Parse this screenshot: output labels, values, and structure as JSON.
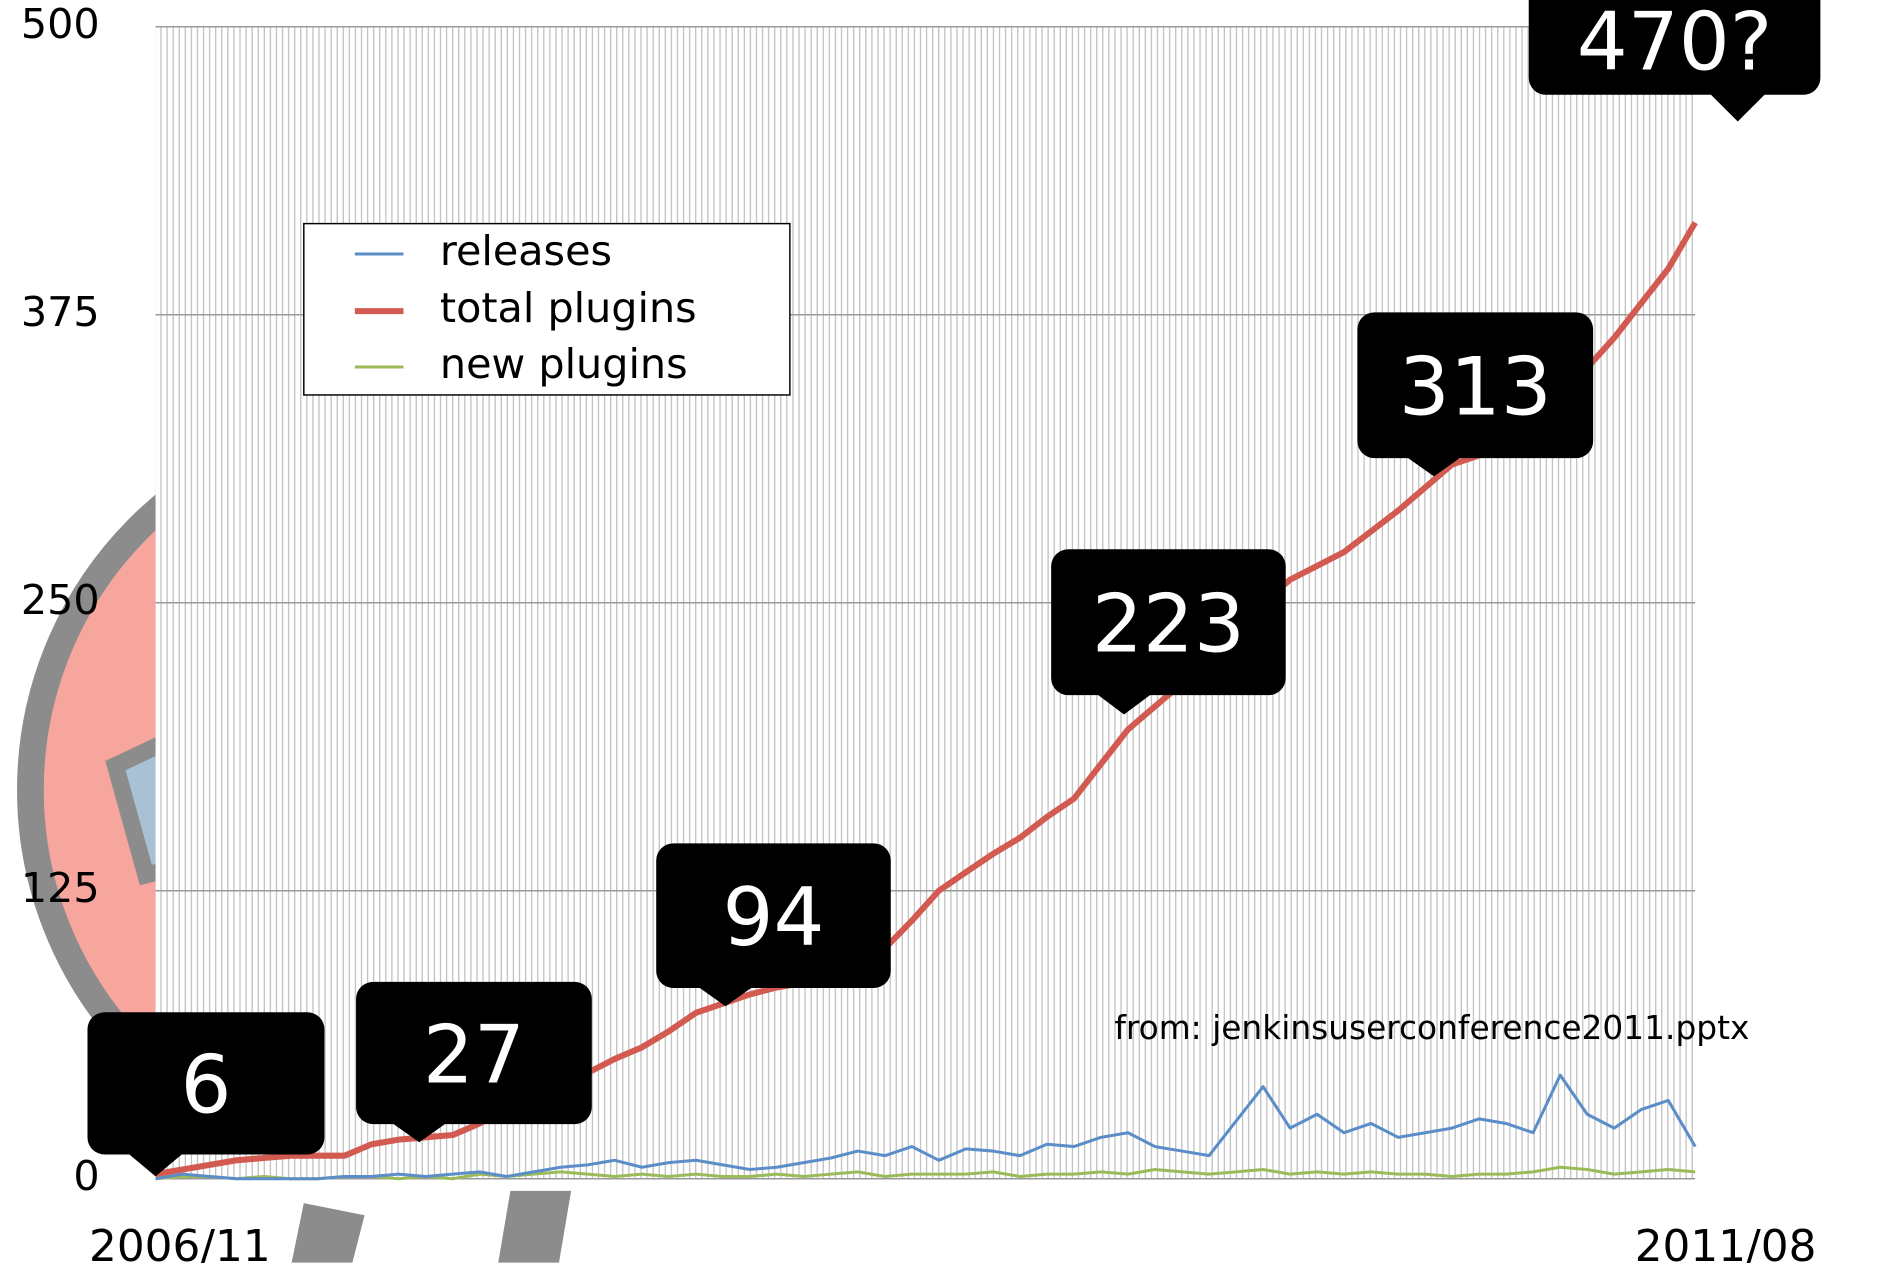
{
  "chart_data": {
    "type": "line",
    "categories": [
      "2006/11",
      null,
      null,
      null,
      null,
      null,
      null,
      null,
      null,
      null,
      null,
      null,
      null,
      null,
      null,
      null,
      null,
      null,
      null,
      null,
      null,
      null,
      null,
      null,
      null,
      null,
      null,
      null,
      null,
      null,
      null,
      null,
      null,
      null,
      null,
      null,
      null,
      null,
      null,
      null,
      null,
      null,
      null,
      null,
      null,
      null,
      null,
      null,
      null,
      null,
      null,
      null,
      null,
      null,
      null,
      null,
      null,
      "2011/08"
    ],
    "series": [
      {
        "name": "releases",
        "color": "#5b8ec8",
        "values": [
          0,
          2,
          1,
          0,
          0,
          0,
          0,
          1,
          1,
          2,
          1,
          2,
          3,
          1,
          3,
          5,
          6,
          8,
          5,
          7,
          8,
          6,
          4,
          5,
          7,
          9,
          12,
          10,
          14,
          8,
          13,
          12,
          10,
          15,
          14,
          18,
          20,
          14,
          12,
          10,
          25,
          40,
          22,
          28,
          20,
          24,
          18,
          20,
          22,
          26,
          24,
          20,
          45,
          28,
          22,
          30,
          34,
          14
        ]
      },
      {
        "name": "total plugins",
        "color": "#d25a50",
        "values": [
          2,
          4,
          6,
          8,
          9,
          10,
          10,
          10,
          15,
          17,
          18,
          19,
          24,
          30,
          35,
          40,
          46,
          52,
          57,
          64,
          72,
          76,
          80,
          83,
          85,
          88,
          94,
          100,
          112,
          125,
          133,
          141,
          148,
          157,
          165,
          180,
          195,
          205,
          215,
          228,
          240,
          250,
          260,
          266,
          272,
          281,
          290,
          300,
          310,
          314,
          318,
          328,
          340,
          352,
          365,
          380,
          395,
          415
        ]
      },
      {
        "name": "new plugins",
        "color": "#9bbb59",
        "values": [
          0,
          1,
          1,
          0,
          1,
          0,
          0,
          1,
          1,
          0,
          1,
          0,
          2,
          1,
          2,
          3,
          2,
          1,
          2,
          1,
          2,
          1,
          1,
          2,
          1,
          2,
          3,
          1,
          2,
          2,
          2,
          3,
          1,
          2,
          2,
          3,
          2,
          4,
          3,
          2,
          3,
          4,
          2,
          3,
          2,
          3,
          2,
          2,
          1,
          2,
          2,
          3,
          5,
          4,
          2,
          3,
          4,
          3
        ]
      }
    ],
    "ylim": [
      0,
      500
    ],
    "yticks": [
      0,
      125,
      250,
      375,
      500
    ],
    "grid": true,
    "annotations": [
      "6",
      "27",
      "94",
      "223",
      "313",
      "470?"
    ],
    "source": "from: jenkinsuserconference2011.pptx"
  }
}
